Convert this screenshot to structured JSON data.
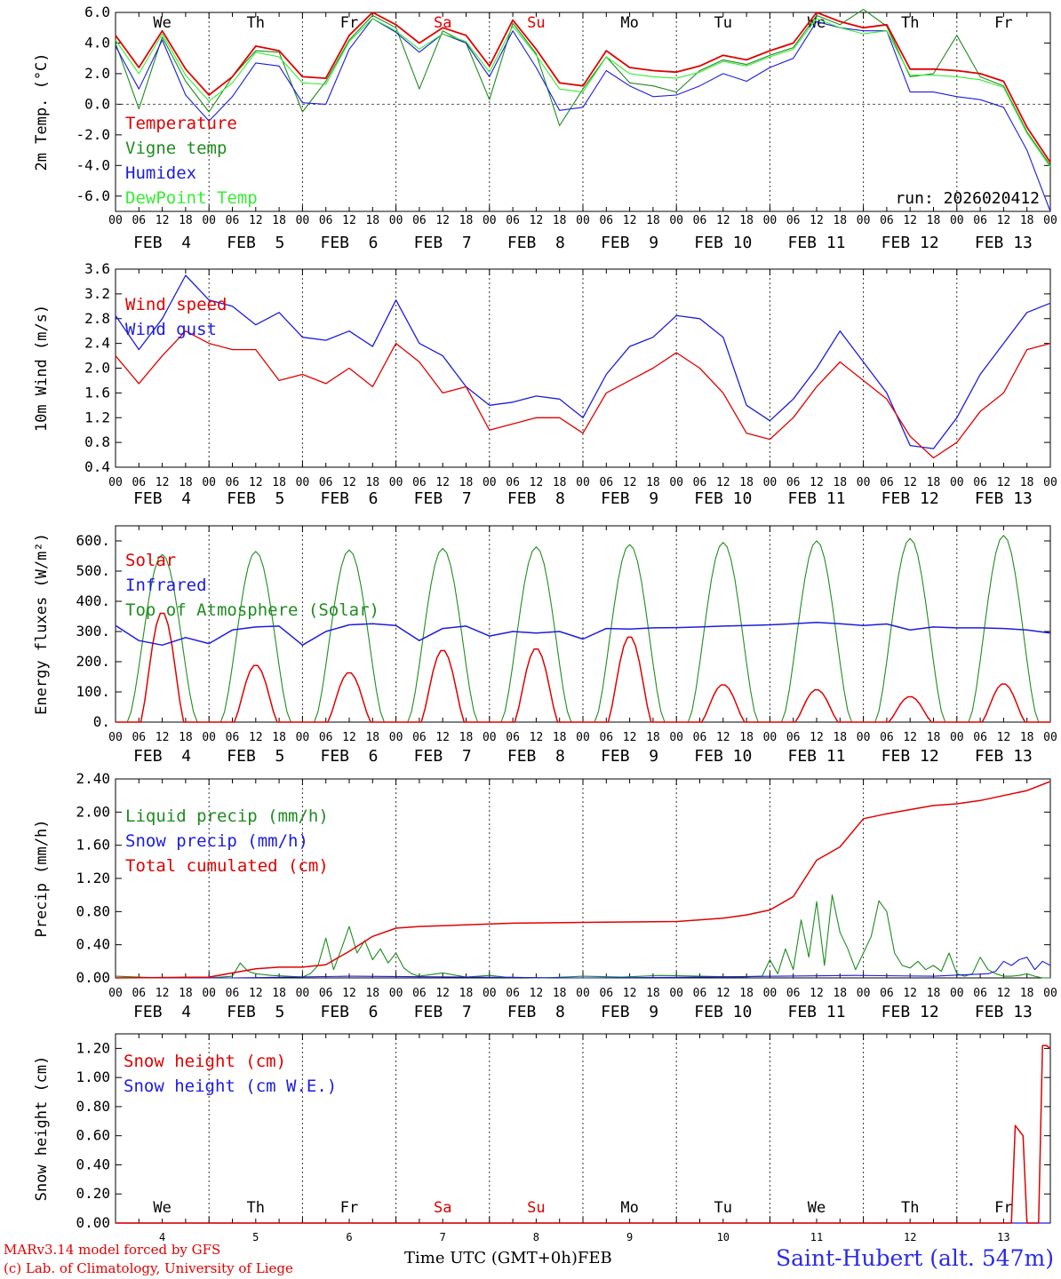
{
  "chart_data": [
    {
      "type": "line",
      "ylabel": "2m Temp. (°C)",
      "ylim": [
        -7.0,
        6.0
      ],
      "ytick_labels": [
        "-6.0",
        "-4.0",
        "-2.0",
        "0.0",
        "2.0",
        "4.0",
        "6.0"
      ],
      "ytick_values": [
        -6,
        -4,
        -2,
        0,
        2,
        4,
        6
      ],
      "zero_line": true,
      "run_label": "run: 2026020412",
      "x_hours": [
        0,
        6,
        12,
        18,
        24,
        30,
        36,
        42,
        48,
        54,
        60,
        66,
        72,
        78,
        84,
        90,
        96,
        102,
        108,
        114,
        120,
        126,
        132,
        138,
        144,
        150,
        156,
        162,
        168,
        174,
        180,
        186,
        192,
        198,
        204,
        210,
        216,
        222,
        228,
        234,
        240
      ],
      "series": [
        {
          "name": "Temperature",
          "color": "#e00000",
          "values": [
            4.5,
            2.4,
            4.8,
            2.3,
            0.6,
            1.8,
            3.8,
            3.5,
            1.8,
            1.7,
            4.5,
            6.0,
            5.2,
            4.0,
            5.0,
            4.5,
            2.5,
            5.5,
            3.6,
            1.4,
            1.2,
            3.5,
            2.4,
            2.2,
            2.1,
            2.5,
            3.2,
            2.9,
            3.5,
            4.0,
            6.0,
            5.4,
            5.0,
            5.2,
            2.3,
            2.3,
            2.2,
            2.0,
            1.5,
            -1.5,
            -3.8
          ]
        },
        {
          "name": "Vigne temp",
          "color": "#1f8c1f",
          "values": [
            4.0,
            -0.3,
            4.4,
            1.5,
            -0.5,
            1.8,
            3.5,
            3.4,
            -0.5,
            1.5,
            4.2,
            5.8,
            5.0,
            1.0,
            4.8,
            4.0,
            0.3,
            5.3,
            3.3,
            -1.4,
            1.0,
            3.1,
            1.4,
            1.2,
            0.8,
            2.2,
            2.9,
            2.6,
            3.2,
            3.7,
            5.8,
            5.2,
            6.2,
            5.1,
            1.8,
            2.0,
            4.5,
            1.8,
            1.2,
            -1.8,
            -4.0
          ]
        },
        {
          "name": "Humidex",
          "color": "#1c1cde",
          "values": [
            3.8,
            1.0,
            4.2,
            0.6,
            -1.1,
            0.5,
            2.7,
            2.5,
            0.1,
            0.0,
            3.6,
            5.6,
            4.7,
            3.4,
            4.6,
            4.0,
            1.8,
            4.8,
            2.4,
            -0.4,
            -0.2,
            2.2,
            1.2,
            0.5,
            0.6,
            1.2,
            2.0,
            1.5,
            2.4,
            3.0,
            5.4,
            5.0,
            4.8,
            4.8,
            0.8,
            0.8,
            0.5,
            0.3,
            -0.2,
            -3.0,
            -7.0
          ]
        },
        {
          "name": "DewPoint Temp",
          "color": "#33ee33",
          "values": [
            4.2,
            2.0,
            4.6,
            1.9,
            0.2,
            1.4,
            3.4,
            3.1,
            1.4,
            1.3,
            4.1,
            5.6,
            4.8,
            3.6,
            4.6,
            4.1,
            2.1,
            5.1,
            3.2,
            1.0,
            0.8,
            3.1,
            2.0,
            1.8,
            1.7,
            2.1,
            2.8,
            2.5,
            3.1,
            3.6,
            5.6,
            5.0,
            4.6,
            4.8,
            1.9,
            1.9,
            1.8,
            1.6,
            1.1,
            -1.9,
            -4.1
          ]
        }
      ]
    },
    {
      "type": "line",
      "ylabel": "10m Wind (m/s)",
      "ylim": [
        0.4,
        3.6
      ],
      "ytick_labels": [
        "0.4",
        "0.8",
        "1.2",
        "1.6",
        "2.0",
        "2.4",
        "2.8",
        "3.2",
        "3.6"
      ],
      "ytick_values": [
        0.4,
        0.8,
        1.2,
        1.6,
        2.0,
        2.4,
        2.8,
        3.2,
        3.6
      ],
      "x_hours": [
        0,
        6,
        12,
        18,
        24,
        30,
        36,
        42,
        48,
        54,
        60,
        66,
        72,
        78,
        84,
        90,
        96,
        102,
        108,
        114,
        120,
        126,
        132,
        138,
        144,
        150,
        156,
        162,
        168,
        174,
        180,
        186,
        192,
        198,
        204,
        210,
        216,
        222,
        228,
        234,
        240
      ],
      "series": [
        {
          "name": "Wind speed",
          "color": "#e00000",
          "values": [
            2.2,
            1.75,
            2.2,
            2.6,
            2.4,
            2.3,
            2.3,
            1.8,
            1.9,
            1.75,
            2.0,
            1.7,
            2.4,
            2.1,
            1.6,
            1.7,
            1.0,
            1.1,
            1.2,
            1.2,
            0.95,
            1.6,
            1.8,
            2.0,
            2.25,
            2.0,
            1.6,
            0.95,
            0.85,
            1.2,
            1.7,
            2.1,
            1.8,
            1.5,
            0.9,
            0.55,
            0.8,
            1.3,
            1.6,
            2.3,
            2.4
          ]
        },
        {
          "name": "Wind gust",
          "color": "#1c1cde",
          "values": [
            2.85,
            2.3,
            2.8,
            3.5,
            3.1,
            3.0,
            2.7,
            2.9,
            2.5,
            2.45,
            2.6,
            2.35,
            3.1,
            2.4,
            2.2,
            1.7,
            1.4,
            1.45,
            1.55,
            1.5,
            1.2,
            1.9,
            2.35,
            2.5,
            2.85,
            2.8,
            2.5,
            1.4,
            1.15,
            1.5,
            2.0,
            2.6,
            2.1,
            1.6,
            0.75,
            0.7,
            1.2,
            1.9,
            2.4,
            2.9,
            3.05
          ]
        }
      ]
    },
    {
      "type": "line",
      "ylabel": "Energy fluxes (W/m²)",
      "ylim": [
        0,
        650
      ],
      "ytick_labels": [
        "0.",
        "100.",
        "200.",
        "300.",
        "400.",
        "500.",
        "600."
      ],
      "ytick_values": [
        0,
        100,
        200,
        300,
        400,
        500,
        600
      ],
      "infrared": {
        "x_hours": [
          0,
          6,
          12,
          18,
          24,
          30,
          36,
          42,
          48,
          54,
          60,
          66,
          72,
          78,
          84,
          90,
          96,
          102,
          108,
          114,
          120,
          126,
          132,
          138,
          144,
          150,
          156,
          162,
          168,
          174,
          180,
          186,
          192,
          198,
          204,
          210,
          216,
          222,
          228,
          234,
          240
        ],
        "values": [
          320,
          270,
          255,
          280,
          260,
          305,
          315,
          318,
          255,
          300,
          322,
          326,
          320,
          270,
          310,
          318,
          285,
          300,
          295,
          300,
          275,
          310,
          308,
          312,
          313,
          315,
          318,
          320,
          322,
          326,
          330,
          326,
          320,
          325,
          305,
          315,
          312,
          312,
          310,
          305,
          295
        ]
      },
      "days": [
        {
          "solar_peak": 365,
          "toa_peak": 555
        },
        {
          "solar_peak": 190,
          "toa_peak": 565
        },
        {
          "solar_peak": 165,
          "toa_peak": 570
        },
        {
          "solar_peak": 240,
          "toa_peak": 575
        },
        {
          "solar_peak": 245,
          "toa_peak": 580
        },
        {
          "solar_peak": 285,
          "toa_peak": 588
        },
        {
          "solar_peak": 125,
          "toa_peak": 595
        },
        {
          "solar_peak": 108,
          "toa_peak": 600
        },
        {
          "solar_peak": 85,
          "toa_peak": 608
        },
        {
          "solar_peak": 128,
          "toa_peak": 618
        }
      ],
      "series": [
        {
          "name": "Solar",
          "color": "#e00000"
        },
        {
          "name": "Infrared",
          "color": "#1c1cde"
        },
        {
          "name": "Top of Atmosphere (Solar)",
          "color": "#1f8c1f"
        }
      ]
    },
    {
      "type": "line",
      "ylabel": "Precip (mm/h)",
      "ylim": [
        0,
        2.4
      ],
      "ytick_labels": [
        "0.00",
        "0.40",
        "0.80",
        "1.20",
        "1.60",
        "2.00",
        "2.40"
      ],
      "ytick_values": [
        0,
        0.4,
        0.8,
        1.2,
        1.6,
        2.0,
        2.4
      ],
      "series": [
        {
          "name": "Liquid precip (mm/h)",
          "color": "#1f8c1f",
          "x_hours": [
            0,
            6,
            12,
            18,
            24,
            30,
            32,
            34,
            36,
            40,
            44,
            48,
            50,
            52,
            54,
            56,
            58,
            60,
            62,
            64,
            66,
            68,
            70,
            72,
            74,
            76,
            78,
            84,
            90,
            96,
            100,
            110,
            120,
            130,
            140,
            150,
            160,
            166,
            168,
            170,
            172,
            174,
            176,
            178,
            180,
            182,
            184,
            186,
            188,
            190,
            192,
            194,
            196,
            198,
            200,
            202,
            204,
            206,
            208,
            210,
            212,
            214,
            216,
            218,
            220,
            222,
            224,
            226,
            228,
            230,
            232,
            234,
            236,
            238,
            240
          ],
          "values": [
            0.02,
            0.01,
            0.0,
            0.01,
            0.0,
            0.02,
            0.18,
            0.08,
            0.05,
            0.03,
            0.02,
            0.01,
            0.05,
            0.15,
            0.48,
            0.1,
            0.35,
            0.62,
            0.3,
            0.45,
            0.22,
            0.35,
            0.18,
            0.3,
            0.12,
            0.05,
            0.02,
            0.06,
            0.01,
            0.03,
            0.01,
            0.0,
            0.02,
            0.01,
            0.03,
            0.02,
            0.01,
            0.02,
            0.22,
            0.05,
            0.35,
            0.1,
            0.7,
            0.25,
            0.92,
            0.15,
            1.0,
            0.55,
            0.35,
            0.1,
            0.3,
            0.5,
            0.93,
            0.8,
            0.3,
            0.15,
            0.12,
            0.2,
            0.1,
            0.15,
            0.08,
            0.3,
            0.05,
            0.02,
            0.05,
            0.25,
            0.1,
            0.05,
            0.02,
            0.02,
            0.03,
            0.05,
            0.02,
            0.0,
            0.0
          ]
        },
        {
          "name": "Snow precip (mm/h)",
          "color": "#1c1cde",
          "x_hours": [
            0,
            30,
            60,
            90,
            120,
            150,
            170,
            190,
            210,
            224,
            226,
            228,
            230,
            232,
            234,
            236,
            238,
            240
          ],
          "values": [
            0.0,
            0.0,
            0.02,
            0.01,
            0.0,
            0.01,
            0.02,
            0.03,
            0.02,
            0.05,
            0.08,
            0.2,
            0.15,
            0.22,
            0.25,
            0.1,
            0.2,
            0.15
          ]
        },
        {
          "name": "Total cumulated (cm)",
          "color": "#e00000",
          "x_hours": [
            0,
            24,
            30,
            36,
            42,
            48,
            54,
            60,
            66,
            72,
            78,
            90,
            102,
            120,
            144,
            156,
            162,
            168,
            174,
            180,
            186,
            192,
            198,
            204,
            210,
            216,
            222,
            228,
            234,
            240
          ],
          "values": [
            0.0,
            0.01,
            0.06,
            0.11,
            0.13,
            0.13,
            0.16,
            0.32,
            0.5,
            0.6,
            0.62,
            0.64,
            0.66,
            0.67,
            0.68,
            0.72,
            0.76,
            0.82,
            0.98,
            1.42,
            1.58,
            1.92,
            1.98,
            2.03,
            2.08,
            2.1,
            2.14,
            2.2,
            2.26,
            2.37
          ]
        }
      ]
    },
    {
      "type": "line",
      "ylabel": "Snow height (cm)",
      "ylim": [
        0,
        1.3
      ],
      "ytick_labels": [
        "0.00",
        "0.20",
        "0.40",
        "0.60",
        "0.80",
        "1.00",
        "1.20"
      ],
      "ytick_values": [
        0,
        0.2,
        0.4,
        0.6,
        0.8,
        1.0,
        1.2
      ],
      "series": [
        {
          "name": "Snow height (cm)",
          "color": "#e00000",
          "x_hours": [
            0,
            230,
            231,
            233,
            234,
            236,
            237,
            238,
            239,
            240
          ],
          "values": [
            0,
            0,
            0.67,
            0.6,
            0.0,
            0.0,
            0.0,
            1.22,
            1.22,
            1.2
          ]
        },
        {
          "name": "Snow height (cm W.E.)",
          "color": "#1c1cde",
          "x_hours": [
            0,
            240
          ],
          "values": [
            0,
            0
          ]
        }
      ],
      "day_numbers": [
        "4",
        "5",
        "6",
        "7",
        "8",
        "9",
        "10",
        "11",
        "12",
        "13"
      ]
    }
  ],
  "day_names": [
    {
      "label": "We",
      "color": "#000000"
    },
    {
      "label": "Th",
      "color": "#000000"
    },
    {
      "label": "Fr",
      "color": "#000000"
    },
    {
      "label": "Sa",
      "color": "#e00000"
    },
    {
      "label": "Su",
      "color": "#e00000"
    },
    {
      "label": "Mo",
      "color": "#000000"
    },
    {
      "label": "Tu",
      "color": "#000000"
    },
    {
      "label": "We",
      "color": "#000000"
    },
    {
      "label": "Th",
      "color": "#000000"
    },
    {
      "label": "Fr",
      "color": "#000000"
    }
  ],
  "date_labels": [
    "FEB  4",
    "FEB  5",
    "FEB  6",
    "FEB  7",
    "FEB  8",
    "FEB  9",
    "FEB 10",
    "FEB 11",
    "FEB 12",
    "FEB 13"
  ],
  "hour_tick_labels": [
    "00",
    "06",
    "12",
    "18"
  ],
  "hour_end_label": "00",
  "footer": {
    "model_credit": "MARv3.14 model forced by GFS",
    "lab_credit": "(c) Lab. of Climatology, University of Liege",
    "time_axis_label": "Time UTC (GMT+0h)",
    "month_label": "FEB",
    "station": "Saint-Hubert (alt. 547m)"
  }
}
